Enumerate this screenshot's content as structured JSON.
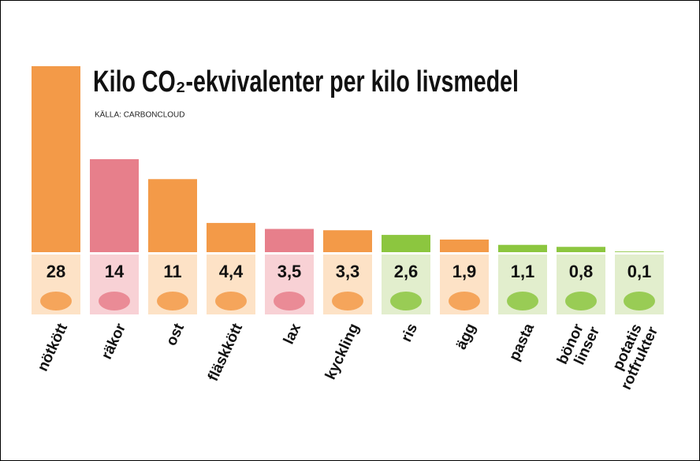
{
  "chart_data": {
    "type": "bar",
    "title": "Kilo CO₂-ekvivalenter per kilo livsmedel",
    "subtitle": "KÄLLA: CARBONCLOUD",
    "categories": [
      "nötkött",
      "räkor",
      "ost",
      "fläskkött",
      "lax",
      "kyckling",
      "ris",
      "ägg",
      "pasta",
      "bönor linser",
      "potatis rotfrukter"
    ],
    "values": [
      28,
      14,
      11,
      4.4,
      3.5,
      3.3,
      2.6,
      1.9,
      1.1,
      0.8,
      0.1
    ],
    "value_labels": [
      "28",
      "14",
      "11",
      "4,4",
      "3,5",
      "3,3",
      "2,6",
      "1,9",
      "1,1",
      "0,8",
      "0,1"
    ],
    "colors": [
      "#f39a48",
      "#e77f8b",
      "#f39a48",
      "#f39a48",
      "#e77f8b",
      "#f39a48",
      "#8cc63f",
      "#f39a48",
      "#8cc63f",
      "#8cc63f",
      "#8cc63f"
    ],
    "label_colors": [
      "#fde2c6",
      "#f8d1d5",
      "#fde2c6",
      "#fde2c6",
      "#f8d1d5",
      "#fde2c6",
      "#e2eecd",
      "#fde2c6",
      "#e2eecd",
      "#e2eecd",
      "#e2eecd"
    ],
    "ylim": [
      0,
      28
    ]
  }
}
